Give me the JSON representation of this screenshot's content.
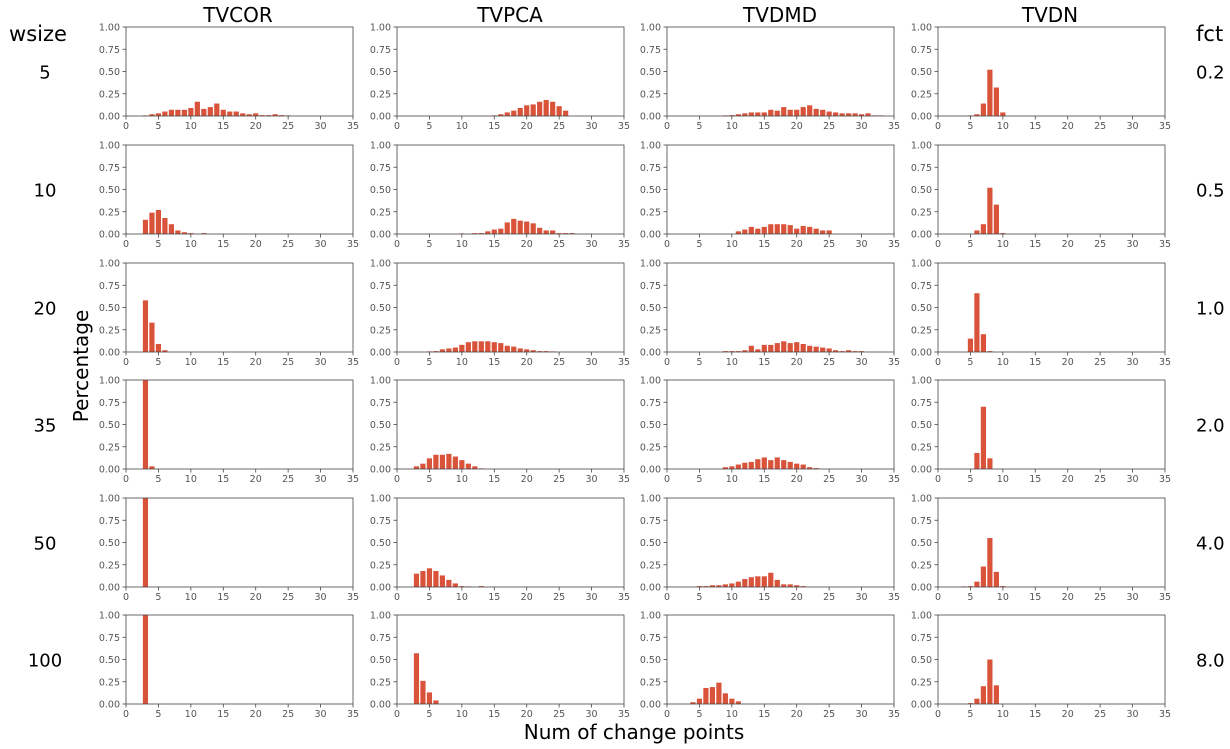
{
  "figure": {
    "row_header_title": "wsize",
    "right_header_title": "fct",
    "ylabel": "Percentage",
    "xlabel": "Num of change points"
  },
  "columns": [
    "TVCOR",
    "TVPCA",
    "TVDMD",
    "TVDN"
  ],
  "row_labels": [
    "5",
    "10",
    "20",
    "35",
    "50",
    "100"
  ],
  "right_labels": [
    "0.2",
    "0.5",
    "1.0",
    "2.0",
    "4.0",
    "8.0"
  ],
  "colors": {
    "bar": "#d9533a",
    "axis": "#444444",
    "tick_text": "#555555",
    "text": "#000000"
  },
  "chart_data": {
    "type": "bar",
    "grid": false,
    "xlim": [
      0,
      35
    ],
    "ylim": [
      0,
      1
    ],
    "xticks": [
      0,
      5,
      10,
      15,
      20,
      25,
      30,
      35
    ],
    "yticks": [
      "0.00",
      "0.25",
      "0.50",
      "0.75",
      "1.00"
    ],
    "xlabel": "Num of change points",
    "ylabel": "Percentage",
    "panels": [
      [
        {
          "x": [
            3,
            4,
            5,
            6,
            7,
            8,
            9,
            10,
            11,
            12,
            13,
            14,
            15,
            16,
            17,
            18,
            19,
            20,
            21,
            22,
            23,
            24,
            25
          ],
          "y": [
            0.005,
            0.02,
            0.03,
            0.05,
            0.07,
            0.07,
            0.07,
            0.09,
            0.16,
            0.08,
            0.1,
            0.14,
            0.07,
            0.05,
            0.05,
            0.03,
            0.02,
            0.03,
            0.01,
            0.01,
            0.02,
            0.01,
            0.005
          ]
        },
        {
          "x": [
            15,
            16,
            17,
            18,
            19,
            20,
            21,
            22,
            23,
            24,
            25,
            26
          ],
          "y": [
            0.005,
            0.02,
            0.04,
            0.06,
            0.09,
            0.12,
            0.13,
            0.16,
            0.18,
            0.16,
            0.11,
            0.06
          ]
        },
        {
          "x": [
            9,
            10,
            11,
            12,
            13,
            14,
            15,
            16,
            17,
            18,
            19,
            20,
            21,
            22,
            23,
            24,
            25,
            26,
            27,
            28,
            29,
            30,
            31,
            32,
            33
          ],
          "y": [
            0.005,
            0.01,
            0.02,
            0.03,
            0.04,
            0.04,
            0.04,
            0.07,
            0.06,
            0.1,
            0.07,
            0.07,
            0.1,
            0.12,
            0.08,
            0.07,
            0.05,
            0.04,
            0.03,
            0.03,
            0.03,
            0.02,
            0.03,
            0.005,
            0.005
          ]
        },
        {
          "x": [
            5,
            6,
            7,
            8,
            9,
            10
          ],
          "y": [
            0.005,
            0.02,
            0.14,
            0.52,
            0.32,
            0.04
          ]
        }
      ],
      [
        {
          "x": [
            3,
            4,
            5,
            6,
            7,
            8,
            9,
            10,
            12
          ],
          "y": [
            0.16,
            0.24,
            0.27,
            0.18,
            0.11,
            0.04,
            0.02,
            0.01,
            0.01
          ]
        },
        {
          "x": [
            10,
            12,
            13,
            14,
            15,
            16,
            17,
            18,
            19,
            20,
            21,
            22,
            23,
            24,
            25,
            26,
            27
          ],
          "y": [
            0.005,
            0.01,
            0.01,
            0.03,
            0.05,
            0.06,
            0.13,
            0.17,
            0.15,
            0.14,
            0.12,
            0.07,
            0.04,
            0.04,
            0.01,
            0.01,
            0.01
          ]
        },
        {
          "x": [
            11,
            12,
            13,
            14,
            15,
            16,
            17,
            18,
            19,
            20,
            21,
            22,
            23,
            24,
            25
          ],
          "y": [
            0.03,
            0.05,
            0.08,
            0.06,
            0.08,
            0.11,
            0.11,
            0.11,
            0.1,
            0.06,
            0.09,
            0.08,
            0.06,
            0.04,
            0.04
          ]
        },
        {
          "x": [
            6,
            7,
            8,
            9,
            10
          ],
          "y": [
            0.04,
            0.11,
            0.52,
            0.33,
            0.01
          ]
        }
      ],
      [
        {
          "x": [
            3,
            4,
            5,
            6
          ],
          "y": [
            0.58,
            0.33,
            0.09,
            0.02
          ]
        },
        {
          "x": [
            5,
            6,
            7,
            8,
            9,
            10,
            11,
            12,
            13,
            14,
            15,
            16,
            17,
            18,
            19,
            20,
            21,
            22,
            23,
            24
          ],
          "y": [
            0.005,
            0.01,
            0.03,
            0.04,
            0.05,
            0.08,
            0.11,
            0.12,
            0.12,
            0.12,
            0.11,
            0.1,
            0.07,
            0.06,
            0.04,
            0.03,
            0.02,
            0.01,
            0.01,
            0.005
          ]
        },
        {
          "x": [
            9,
            10,
            11,
            12,
            13,
            14,
            15,
            16,
            17,
            18,
            19,
            20,
            21,
            22,
            23,
            24,
            25,
            26,
            27,
            28,
            29,
            30
          ],
          "y": [
            0.01,
            0.01,
            0.01,
            0.02,
            0.07,
            0.03,
            0.08,
            0.08,
            0.1,
            0.12,
            0.1,
            0.11,
            0.09,
            0.07,
            0.06,
            0.05,
            0.04,
            0.02,
            0.01,
            0.02,
            0.01,
            0.01
          ]
        },
        {
          "x": [
            5,
            6,
            7,
            8
          ],
          "y": [
            0.15,
            0.66,
            0.2,
            0.01
          ]
        }
      ],
      [
        {
          "x": [
            3,
            4
          ],
          "y": [
            1.0,
            0.03
          ]
        },
        {
          "x": [
            3,
            4,
            5,
            6,
            7,
            8,
            9,
            10,
            11,
            12,
            13
          ],
          "y": [
            0.03,
            0.06,
            0.12,
            0.16,
            0.16,
            0.17,
            0.14,
            0.1,
            0.06,
            0.03,
            0.005
          ]
        },
        {
          "x": [
            9,
            10,
            11,
            12,
            13,
            14,
            15,
            16,
            17,
            18,
            19,
            20,
            21,
            22,
            23
          ],
          "y": [
            0.02,
            0.03,
            0.05,
            0.07,
            0.08,
            0.11,
            0.13,
            0.1,
            0.13,
            0.1,
            0.08,
            0.06,
            0.05,
            0.02,
            0.01
          ]
        },
        {
          "x": [
            6,
            7,
            8
          ],
          "y": [
            0.18,
            0.7,
            0.12
          ]
        }
      ],
      [
        {
          "x": [
            3
          ],
          "y": [
            1.0
          ]
        },
        {
          "x": [
            3,
            4,
            5,
            6,
            7,
            8,
            9,
            10,
            11,
            13
          ],
          "y": [
            0.15,
            0.18,
            0.21,
            0.18,
            0.13,
            0.08,
            0.04,
            0.01,
            0.005,
            0.01
          ]
        },
        {
          "x": [
            5,
            6,
            7,
            8,
            9,
            10,
            11,
            12,
            13,
            14,
            15,
            16,
            17,
            18,
            19,
            20,
            21
          ],
          "y": [
            0.01,
            0.01,
            0.02,
            0.02,
            0.03,
            0.04,
            0.06,
            0.09,
            0.11,
            0.12,
            0.12,
            0.16,
            0.08,
            0.03,
            0.03,
            0.02,
            0.01
          ]
        },
        {
          "x": [
            4,
            5,
            6,
            7,
            8,
            9,
            10
          ],
          "y": [
            0.005,
            0.01,
            0.06,
            0.23,
            0.55,
            0.17,
            0.01
          ]
        }
      ],
      [
        {
          "x": [
            3
          ],
          "y": [
            1.0
          ]
        },
        {
          "x": [
            3,
            4,
            5,
            6
          ],
          "y": [
            0.57,
            0.26,
            0.13,
            0.04
          ]
        },
        {
          "x": [
            4,
            5,
            6,
            7,
            8,
            9,
            10,
            11
          ],
          "y": [
            0.02,
            0.06,
            0.18,
            0.19,
            0.24,
            0.12,
            0.06,
            0.03
          ]
        },
        {
          "x": [
            5,
            6,
            7,
            8,
            9
          ],
          "y": [
            0.01,
            0.06,
            0.2,
            0.5,
            0.21
          ]
        }
      ]
    ]
  }
}
